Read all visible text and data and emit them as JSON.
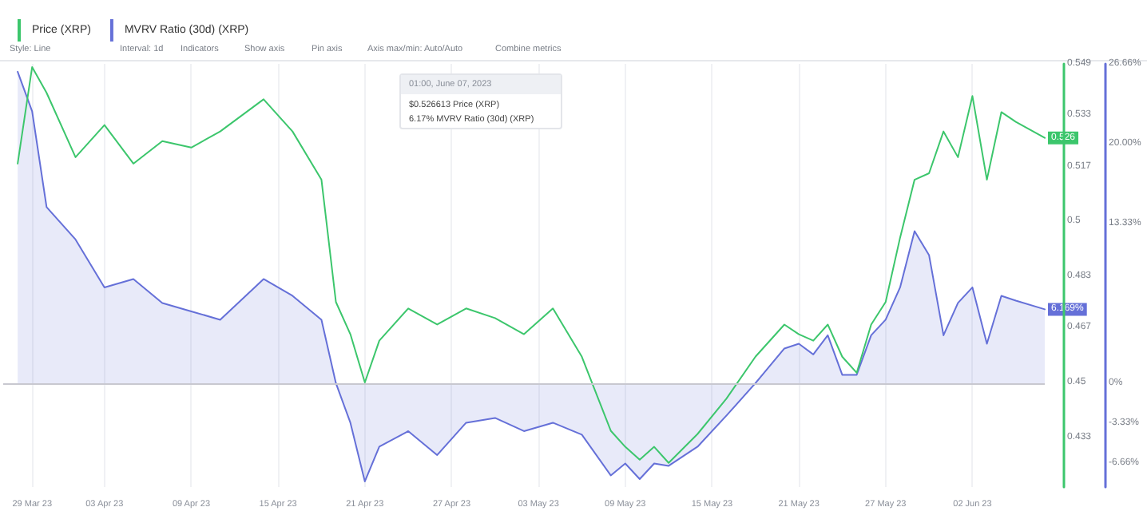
{
  "chart_data": {
    "type": "line",
    "x": [
      "2023-03-28",
      "2023-03-29",
      "2023-03-30",
      "2023-04-01",
      "2023-04-03",
      "2023-04-05",
      "2023-04-07",
      "2023-04-09",
      "2023-04-11",
      "2023-04-14",
      "2023-04-16",
      "2023-04-18",
      "2023-04-19",
      "2023-04-20",
      "2023-04-21",
      "2023-04-22",
      "2023-04-24",
      "2023-04-26",
      "2023-04-28",
      "2023-04-30",
      "2023-05-02",
      "2023-05-04",
      "2023-05-06",
      "2023-05-08",
      "2023-05-09",
      "2023-05-10",
      "2023-05-11",
      "2023-05-12",
      "2023-05-14",
      "2023-05-16",
      "2023-05-18",
      "2023-05-20",
      "2023-05-21",
      "2023-05-22",
      "2023-05-23",
      "2023-05-24",
      "2023-05-25",
      "2023-05-26",
      "2023-05-27",
      "2023-05-28",
      "2023-05-29",
      "2023-05-30",
      "2023-05-31",
      "2023-06-01",
      "2023-06-02",
      "2023-06-03",
      "2023-06-04",
      "2023-06-05",
      "2023-06-07"
    ],
    "series": [
      {
        "name": "Price (XRP)",
        "type": "line",
        "axis": "y",
        "color": "#3cc66c",
        "values": [
          0.518,
          0.548,
          0.54,
          0.52,
          0.53,
          0.518,
          0.525,
          0.523,
          0.528,
          0.538,
          0.528,
          0.513,
          0.475,
          0.465,
          0.45,
          0.463,
          0.473,
          0.468,
          0.473,
          0.47,
          0.465,
          0.473,
          0.458,
          0.435,
          0.43,
          0.426,
          0.43,
          0.425,
          0.434,
          0.445,
          0.458,
          0.468,
          0.465,
          0.463,
          0.468,
          0.458,
          0.453,
          0.468,
          0.475,
          0.495,
          0.513,
          0.515,
          0.528,
          0.52,
          0.539,
          0.513,
          0.534,
          0.531,
          0.526
        ],
        "value_labels": [
          null,
          null,
          null,
          null,
          null,
          null,
          null,
          null,
          null,
          null,
          null,
          null,
          null,
          null,
          null,
          null,
          null,
          null,
          null,
          null,
          null,
          null,
          null,
          null,
          null,
          null,
          null,
          null,
          null,
          null,
          null,
          null,
          null,
          null,
          null,
          null,
          null,
          null,
          null,
          null,
          null,
          null,
          null,
          null,
          null,
          null,
          null,
          null,
          "0.526"
        ]
      },
      {
        "name": "MVRV Ratio (30d) (XRP)",
        "type": "area",
        "axis": "y2",
        "color": "#6570d8",
        "values": [
          26.0,
          22.7,
          14.7,
          12.0,
          8.0,
          8.7,
          6.7,
          6.0,
          5.3,
          8.7,
          7.3,
          5.3,
          0.0,
          -3.3,
          -8.2,
          -5.3,
          -4.0,
          -6.0,
          -3.3,
          -2.9,
          -4.0,
          -3.3,
          -4.3,
          -7.7,
          -6.7,
          -8.0,
          -6.7,
          -6.9,
          -5.3,
          -2.7,
          0.0,
          2.9,
          3.3,
          2.4,
          4.0,
          0.7,
          0.7,
          4.0,
          5.3,
          8.0,
          12.7,
          10.7,
          4.0,
          6.7,
          8.0,
          3.3,
          7.3,
          6.9,
          6.169
        ],
        "value_labels": [
          null,
          null,
          null,
          null,
          null,
          null,
          null,
          null,
          null,
          null,
          null,
          null,
          null,
          null,
          null,
          null,
          null,
          null,
          null,
          null,
          null,
          null,
          null,
          null,
          null,
          null,
          null,
          null,
          null,
          null,
          null,
          null,
          null,
          null,
          null,
          null,
          null,
          null,
          null,
          null,
          null,
          null,
          null,
          null,
          null,
          null,
          null,
          null,
          "6.169%"
        ]
      }
    ],
    "xlim": [
      "2023-03-27",
      "2023-06-07"
    ],
    "xticks": [
      {
        "value": "2023-03-29",
        "label": "29 Mar 23"
      },
      {
        "value": "2023-04-03",
        "label": "03 Apr 23"
      },
      {
        "value": "2023-04-09",
        "label": "09 Apr 23"
      },
      {
        "value": "2023-04-15",
        "label": "15 Apr 23"
      },
      {
        "value": "2023-04-21",
        "label": "21 Apr 23"
      },
      {
        "value": "2023-04-27",
        "label": "27 Apr 23"
      },
      {
        "value": "2023-05-03",
        "label": "03 May 23"
      },
      {
        "value": "2023-05-09",
        "label": "09 May 23"
      },
      {
        "value": "2023-05-15",
        "label": "15 May 23"
      },
      {
        "value": "2023-05-21",
        "label": "21 May 23"
      },
      {
        "value": "2023-05-27",
        "label": "27 May 23"
      },
      {
        "value": "2023-06-02",
        "label": "02 Jun 23"
      }
    ],
    "ylim": [
      0.4175,
      0.549
    ],
    "yticks": [
      0.433,
      0.45,
      0.467,
      0.483,
      0.5,
      0.517,
      0.533,
      0.549
    ],
    "y2lim": [
      -8.67,
      26.66
    ],
    "y2ticks": [
      {
        "value": -6.66,
        "label": "-6.66%"
      },
      {
        "value": -3.33,
        "label": "-3.33%"
      },
      {
        "value": 0,
        "label": "0%"
      },
      {
        "value": 13.33,
        "label": "13.33%"
      },
      {
        "value": 20,
        "label": "20.00%"
      },
      {
        "value": 26.66,
        "label": "26.66%"
      }
    ],
    "ref_lines": [
      {
        "axis": "y2",
        "value": 0,
        "color": "#c8c8d0"
      }
    ],
    "annotations": [
      "Style: Line",
      "Interval: 1d",
      "Indicators",
      "Show axis",
      "Pin axis",
      "Axis max/min: Auto/Auto",
      "Combine metrics",
      "01:00, June 07, 2023",
      "$0.526613 Price (XRP)",
      "6.17% MVRV Ratio (30d) (XRP)"
    ],
    "grid": "x",
    "legend": "top left",
    "marker": "none",
    "line_style": "solid"
  }
}
